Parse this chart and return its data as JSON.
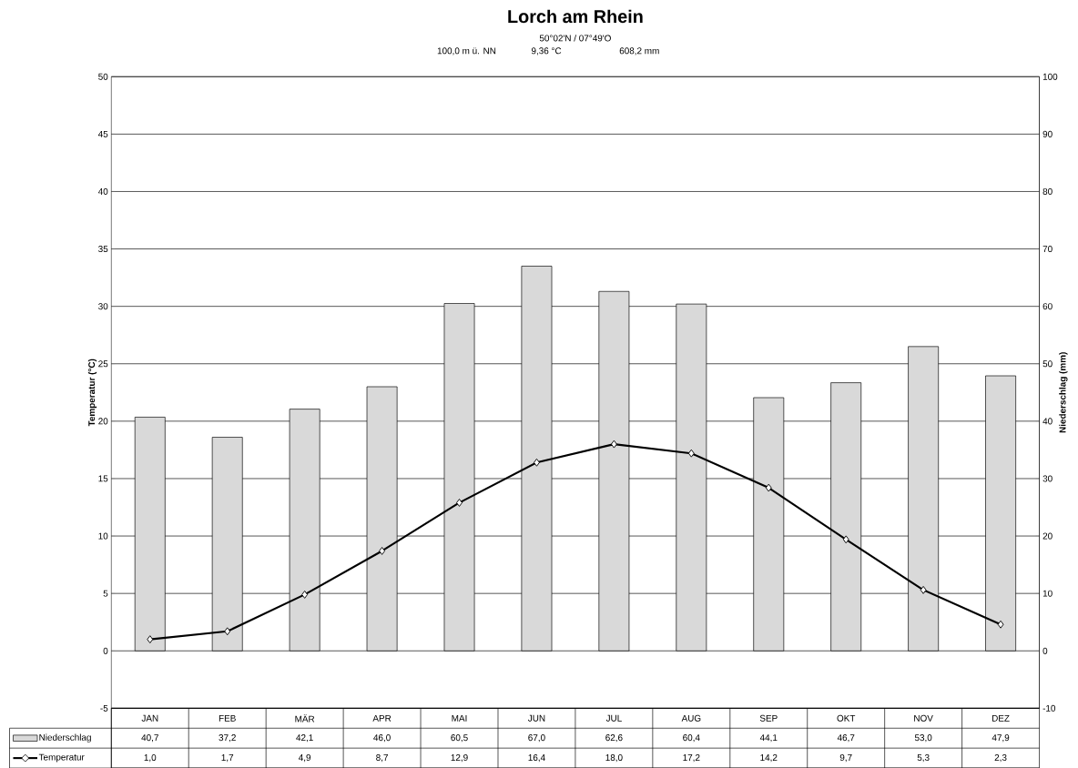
{
  "chart_data": {
    "type": "bar",
    "title": "Lorch am Rhein",
    "subtitle": "50°02'N / 07°49'O",
    "annotations": [
      "100,0 m ü. NN",
      "9,36 °C",
      "608,2 mm"
    ],
    "categories": [
      "JAN",
      "FEB",
      "MÄR",
      "APR",
      "MAI",
      "JUN",
      "JUL",
      "AUG",
      "SEP",
      "OKT",
      "NOV",
      "DEZ"
    ],
    "ylabel": "Temperatur (°C)",
    "y2label": "Niederschlag (mm)",
    "ylim": [
      -5,
      50
    ],
    "yticks": [
      -5,
      0,
      5,
      10,
      15,
      20,
      25,
      30,
      35,
      40,
      45,
      50
    ],
    "y2lim": [
      -10,
      100
    ],
    "y2ticks": [
      -10,
      0,
      10,
      20,
      30,
      40,
      50,
      60,
      70,
      80,
      90,
      100
    ],
    "grid": true,
    "legend": "bottom left",
    "marker": "diamond",
    "series": [
      {
        "name": "Niederschlag",
        "axis": "y2",
        "color": "#d9d9d9",
        "values": [
          40.7,
          37.2,
          42.1,
          46.0,
          60.5,
          67.0,
          62.6,
          60.4,
          44.1,
          46.7,
          53.0,
          47.9
        ],
        "value_labels": [
          "40,7",
          "37,2",
          "42,1",
          "46,0",
          "60,5",
          "67,0",
          "62,6",
          "60,4",
          "44,1",
          "46,7",
          "53,0",
          "47,9"
        ]
      },
      {
        "name": "Temperatur",
        "type": "line",
        "axis": "y",
        "color": "#000000",
        "values": [
          1.0,
          1.7,
          4.9,
          8.7,
          12.9,
          16.4,
          18.0,
          17.2,
          14.2,
          9.7,
          5.3,
          2.3
        ],
        "value_labels": [
          "1,0",
          "1,7",
          "4,9",
          "8,7",
          "12,9",
          "16,4",
          "18,0",
          "17,2",
          "14,2",
          "9,7",
          "5,3",
          "2,3"
        ]
      }
    ]
  }
}
